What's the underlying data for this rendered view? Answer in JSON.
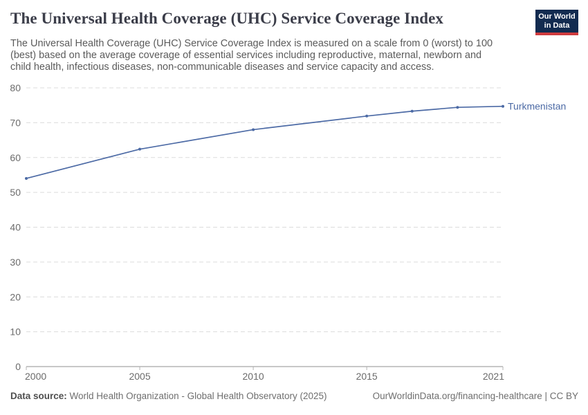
{
  "header": {
    "title": "The Universal Health Coverage (UHC) Service Coverage Index",
    "subtitle": "The Universal Health Coverage (UHC) Service Coverage Index is measured on a scale from 0 (worst) to 100 (best) based on the average coverage of essential services including reproductive, maternal, newborn and child health, infectious diseases, non-communicable diseases and service capacity and access.",
    "logo": {
      "line1": "Our World",
      "line2": "in Data",
      "bg_color": "#122b50",
      "accent_color": "#cf3b3e"
    }
  },
  "chart_data": {
    "type": "line",
    "title": "The Universal Health Coverage (UHC) Service Coverage Index",
    "xlabel": "",
    "ylabel": "",
    "x": [
      2000,
      2005,
      2010,
      2015,
      2017,
      2019,
      2021
    ],
    "series": [
      {
        "name": "Turkmenistan",
        "values": [
          54.0,
          62.4,
          68.0,
          71.9,
          73.3,
          74.4,
          74.7
        ],
        "color": "#4c6aa5"
      }
    ],
    "xlim": [
      2000,
      2021
    ],
    "ylim": [
      0,
      80
    ],
    "yticks": [
      0,
      10,
      20,
      30,
      40,
      50,
      60,
      70,
      80
    ],
    "xticks": [
      2000,
      2005,
      2010,
      2015,
      2021
    ],
    "xtick_labels": [
      "2000",
      "2005",
      "2010",
      "2015",
      "2021"
    ],
    "grid": "horizontal-dashed",
    "legend_position": "end-of-line-label"
  },
  "footer": {
    "source_label": "Data source:",
    "source_text": "World Health Organization - Global Health Observatory (2025)",
    "link_text": "OurWorldinData.org/financing-healthcare | CC BY"
  },
  "colors": {
    "line": "#4c6aa5",
    "grid": "#dcdcdc",
    "axis": "#8f8f8f",
    "tick": "#b3b3b3",
    "tick_label": "#6b6b6b",
    "title_text": "#3b3d49",
    "subtitle_text": "#5b5b5b",
    "footer_text": "#6e6e6e"
  }
}
